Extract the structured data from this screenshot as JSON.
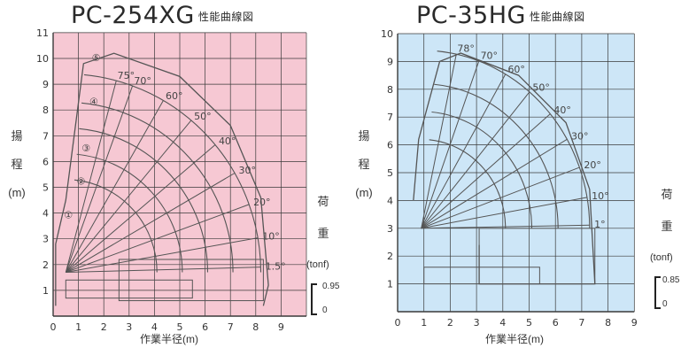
{
  "left_chart": {
    "model": "PC-254XG",
    "subtitle": "性能曲線図",
    "ylabel_chars": [
      "揚",
      "程",
      "(m)"
    ],
    "right_label_chars": [
      "荷",
      "重"
    ],
    "right_unit": "(tonf)",
    "scale_values": [
      "0.95",
      "0"
    ],
    "xlabel": "作業半径(m)",
    "x_ticks": [
      "0",
      "1",
      "2",
      "3",
      "4",
      "5",
      "6",
      "7",
      "8",
      "9"
    ],
    "y_ticks": [
      "1",
      "2",
      "3",
      "4",
      "5",
      "6",
      "7",
      "8",
      "9",
      "10",
      "11"
    ],
    "angle_labels": [
      "75°",
      "70°",
      "60°",
      "50°",
      "40°",
      "30°",
      "20°",
      "10°",
      "1.5°"
    ],
    "boom_labels": [
      "⑤",
      "④",
      "③",
      "②",
      "①"
    ],
    "colors": {
      "background": "#f6c8d3",
      "grid": "#3a3a3a",
      "curve": "#555555"
    }
  },
  "right_chart": {
    "model": "PC-35HG",
    "subtitle": "性能曲線図",
    "ylabel_chars": [
      "揚",
      "程",
      "(m)"
    ],
    "right_label_chars": [
      "荷",
      "重"
    ],
    "right_unit": "(tonf)",
    "scale_values": [
      "0.85",
      "0"
    ],
    "xlabel": "作業半径(m)",
    "x_ticks": [
      "0",
      "1",
      "2",
      "3",
      "4",
      "5",
      "6",
      "7",
      "8",
      "9"
    ],
    "y_ticks": [
      "1",
      "2",
      "3",
      "4",
      "5",
      "6",
      "7",
      "8",
      "9",
      "10"
    ],
    "angle_labels": [
      "78°",
      "70°",
      "60°",
      "50°",
      "40°",
      "30°",
      "20°",
      "10°",
      "1°"
    ],
    "colors": {
      "background": "#cde6f7",
      "grid": "#3a3a3a",
      "curve": "#555555"
    }
  }
}
